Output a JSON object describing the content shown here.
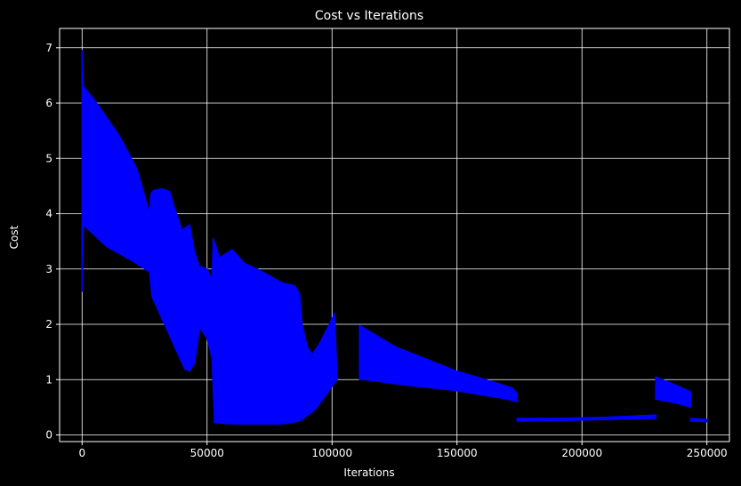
{
  "chart_data": {
    "type": "area",
    "title": "Cost vs Iterations",
    "xlabel": "Iterations",
    "ylabel": "Cost",
    "xlim": [
      -9000,
      259000
    ],
    "ylim": [
      -0.12,
      7.35
    ],
    "xticks": [
      0,
      50000,
      100000,
      150000,
      200000,
      250000
    ],
    "xtick_labels": [
      "0",
      "50000",
      "100000",
      "150000",
      "200000",
      "250000"
    ],
    "yticks": [
      0,
      1,
      2,
      3,
      4,
      5,
      6,
      7
    ],
    "ytick_labels": [
      "0",
      "1",
      "2",
      "3",
      "4",
      "5",
      "6",
      "7"
    ],
    "grid": true,
    "background": "#000000",
    "grid_color": "#ffffff",
    "series": [
      {
        "color": "#0000ff",
        "upper": [
          [
            0,
            6.95
          ],
          [
            500,
            6.3
          ],
          [
            5000,
            6.05
          ],
          [
            15000,
            5.4
          ],
          [
            22000,
            4.8
          ],
          [
            27000,
            4.0
          ],
          [
            27500,
            4.35
          ],
          [
            28500,
            4.42
          ],
          [
            32000,
            4.45
          ],
          [
            35000,
            4.4
          ],
          [
            37000,
            4.1
          ],
          [
            40000,
            3.7
          ],
          [
            43000,
            3.8
          ],
          [
            45000,
            3.3
          ],
          [
            47000,
            3.05
          ],
          [
            50000,
            3.0
          ],
          [
            52000,
            2.8
          ],
          [
            52500,
            3.55
          ],
          [
            55000,
            3.2
          ],
          [
            60000,
            3.35
          ],
          [
            65000,
            3.1
          ],
          [
            70000,
            3.0
          ],
          [
            80000,
            2.75
          ],
          [
            85000,
            2.7
          ],
          [
            87000,
            2.55
          ],
          [
            88000,
            2.0
          ],
          [
            90000,
            1.6
          ],
          [
            92000,
            1.45
          ],
          [
            95000,
            1.65
          ],
          [
            99000,
            2.0
          ],
          [
            101000,
            2.2
          ],
          [
            102000,
            1.0
          ]
        ],
        "lower": [
          [
            0,
            2.6
          ],
          [
            500,
            3.8
          ],
          [
            10000,
            3.4
          ],
          [
            20000,
            3.15
          ],
          [
            27000,
            2.95
          ],
          [
            28000,
            2.5
          ],
          [
            33000,
            2.0
          ],
          [
            38000,
            1.5
          ],
          [
            41000,
            1.2
          ],
          [
            43000,
            1.15
          ],
          [
            45000,
            1.3
          ],
          [
            47000,
            1.95
          ],
          [
            50000,
            1.75
          ],
          [
            52000,
            1.4
          ],
          [
            53000,
            0.22
          ],
          [
            60000,
            0.2
          ],
          [
            80000,
            0.2
          ],
          [
            87000,
            0.25
          ],
          [
            93000,
            0.45
          ],
          [
            98000,
            0.75
          ],
          [
            101000,
            0.95
          ],
          [
            102000,
            1.0
          ]
        ]
      },
      {
        "color": "#0000ff",
        "upper": [
          [
            111000,
            1.98
          ],
          [
            125000,
            1.6
          ],
          [
            150000,
            1.15
          ],
          [
            165000,
            0.95
          ],
          [
            172000,
            0.85
          ],
          [
            174000,
            0.75
          ]
        ],
        "lower": [
          [
            111000,
            1.0
          ],
          [
            113000,
            1.0
          ],
          [
            130000,
            0.9
          ],
          [
            150000,
            0.8
          ],
          [
            170000,
            0.65
          ],
          [
            174000,
            0.6
          ]
        ]
      },
      {
        "color": "#0000ff",
        "upper": [
          [
            174000,
            0.3
          ],
          [
            190000,
            0.3
          ],
          [
            210000,
            0.32
          ],
          [
            229500,
            0.36
          ]
        ],
        "lower": [
          [
            174000,
            0.25
          ],
          [
            190000,
            0.26
          ],
          [
            210000,
            0.28
          ],
          [
            229500,
            0.3
          ]
        ]
      },
      {
        "color": "#0000ff",
        "upper": [
          [
            229500,
            1.05
          ],
          [
            235000,
            0.95
          ],
          [
            240000,
            0.85
          ],
          [
            243500,
            0.78
          ]
        ],
        "lower": [
          [
            229500,
            0.65
          ],
          [
            235000,
            0.6
          ],
          [
            240000,
            0.55
          ],
          [
            243500,
            0.5
          ]
        ]
      },
      {
        "color": "#0000ff",
        "upper": [
          [
            243500,
            0.3
          ],
          [
            250000,
            0.28
          ]
        ],
        "lower": [
          [
            243500,
            0.25
          ],
          [
            250000,
            0.24
          ]
        ]
      }
    ]
  }
}
